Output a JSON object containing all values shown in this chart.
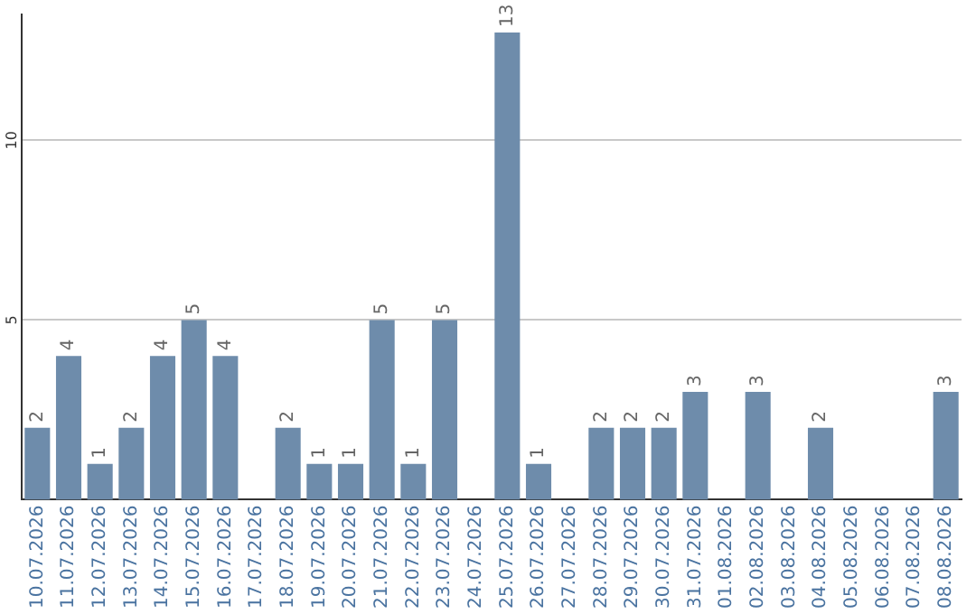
{
  "chart_data": {
    "type": "bar",
    "categories": [
      "10.07.2026",
      "11.07.2026",
      "12.07.2026",
      "13.07.2026",
      "14.07.2026",
      "15.07.2026",
      "16.07.2026",
      "17.07.2026",
      "18.07.2026",
      "19.07.2026",
      "20.07.2026",
      "21.07.2026",
      "22.07.2026",
      "23.07.2026",
      "24.07.2026",
      "25.07.2026",
      "26.07.2026",
      "27.07.2026",
      "28.07.2026",
      "29.07.2026",
      "30.07.2026",
      "31.07.2026",
      "01.08.2026",
      "02.08.2026",
      "03.08.2026",
      "04.08.2026",
      "05.08.2026",
      "06.08.2026",
      "07.08.2026",
      "08.08.2026"
    ],
    "values": [
      2,
      4,
      1,
      2,
      4,
      5,
      4,
      0,
      2,
      1,
      1,
      5,
      1,
      5,
      0,
      13,
      1,
      0,
      2,
      2,
      2,
      3,
      0,
      3,
      0,
      2,
      0,
      0,
      0,
      3
    ],
    "value_labels": [
      "2",
      "4",
      "1",
      "2",
      "4",
      "5",
      "4",
      null,
      "2",
      "1",
      "1",
      "5",
      "1",
      "5",
      null,
      "13",
      "1",
      null,
      "2",
      "2",
      "2",
      "3",
      null,
      "3",
      null,
      "2",
      null,
      null,
      null,
      "3"
    ],
    "color": "#6e8cab",
    "ylim": [
      0,
      13.5
    ],
    "yticks": [
      5,
      10
    ],
    "grid": "y",
    "legend": false
  }
}
